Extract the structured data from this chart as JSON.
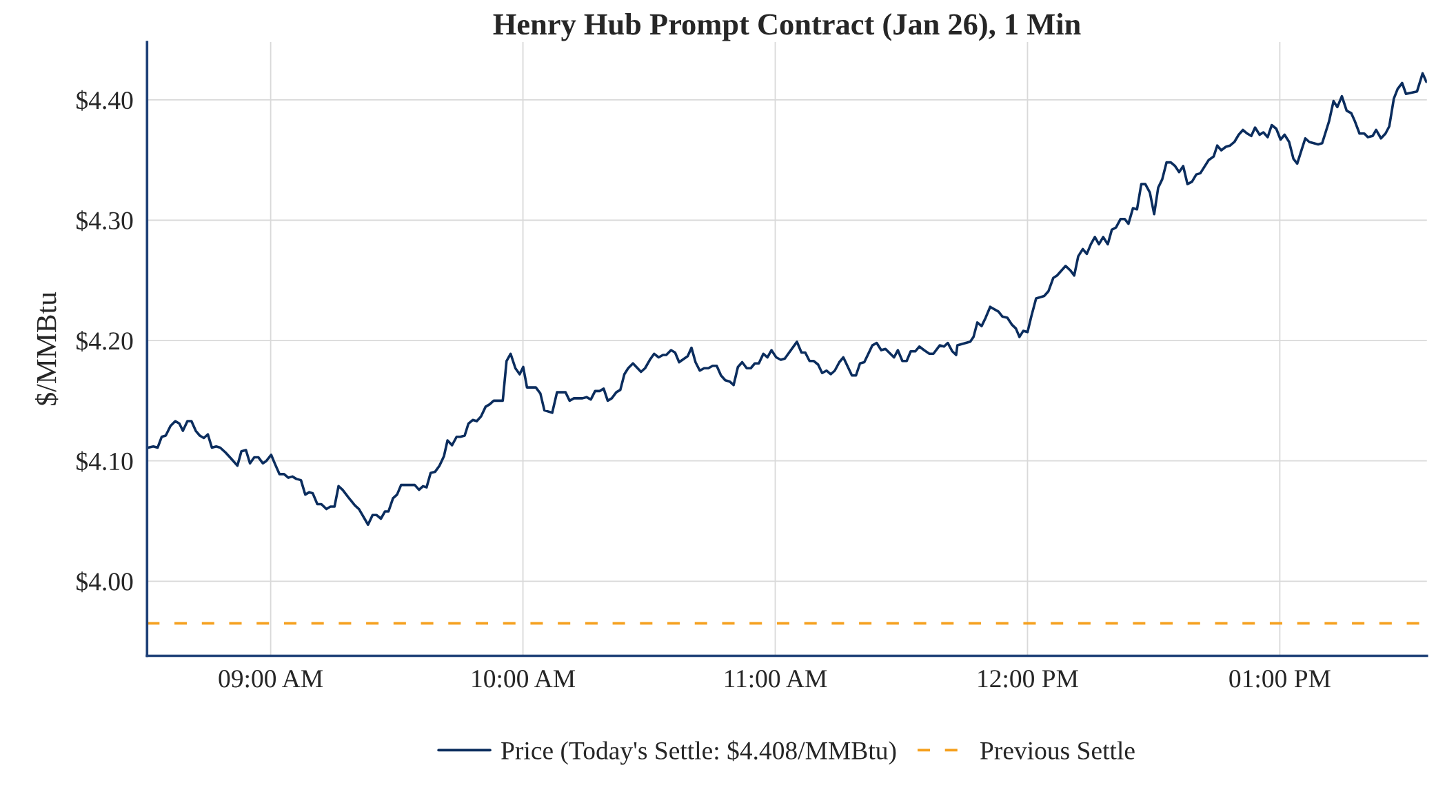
{
  "chart_data": {
    "type": "line",
    "title": "Henry Hub Prompt Contract (Jan 26), 1 Min",
    "ylabel": "$/MMBtu",
    "xlim": [
      8.51,
      13.583
    ],
    "ylim": [
      3.938,
      4.448
    ],
    "xticks": [
      {
        "value": 9,
        "label": "09:00 AM"
      },
      {
        "value": 10,
        "label": "10:00 AM"
      },
      {
        "value": 11,
        "label": "11:00 AM"
      },
      {
        "value": 12,
        "label": "12:00 PM"
      },
      {
        "value": 13,
        "label": "01:00 PM"
      }
    ],
    "yticks": [
      {
        "value": 4.0,
        "label": "$4.00"
      },
      {
        "value": 4.1,
        "label": "$4.10"
      },
      {
        "value": 4.2,
        "label": "$4.20"
      },
      {
        "value": 4.3,
        "label": "$4.30"
      },
      {
        "value": 4.4,
        "label": "$4.40"
      }
    ],
    "grid": true,
    "legend": "bottom",
    "series": [
      {
        "name": "Price (Today's Settle: $4.408/MMBtu)",
        "color": "#0b2d5e",
        "x": [
          8.514,
          8.535,
          8.552,
          8.568,
          8.584,
          8.603,
          8.622,
          8.638,
          8.652,
          8.67,
          8.686,
          8.703,
          8.719,
          8.735,
          8.751,
          8.767,
          8.784,
          8.8,
          8.821,
          8.843,
          8.868,
          8.884,
          8.902,
          8.918,
          8.935,
          8.951,
          8.969,
          8.983,
          9.002,
          9.018,
          9.035,
          9.053,
          9.07,
          9.086,
          9.102,
          9.12,
          9.137,
          9.153,
          9.167,
          9.185,
          9.201,
          9.221,
          9.237,
          9.253,
          9.269,
          9.285,
          9.307,
          9.334,
          9.35,
          9.386,
          9.404,
          9.42,
          9.437,
          9.453,
          9.467,
          9.485,
          9.501,
          9.517,
          9.571,
          9.588,
          9.604,
          9.618,
          9.634,
          9.652,
          9.669,
          9.687,
          9.701,
          9.719,
          9.737,
          9.752,
          9.769,
          9.784,
          9.801,
          9.817,
          9.834,
          9.852,
          9.868,
          9.884,
          9.92,
          9.935,
          9.951,
          9.97,
          9.987,
          10.001,
          10.016,
          10.051,
          10.069,
          10.085,
          10.116,
          10.135,
          10.169,
          10.185,
          10.202,
          10.236,
          10.252,
          10.269,
          10.286,
          10.304,
          10.32,
          10.336,
          10.352,
          10.37,
          10.386,
          10.402,
          10.417,
          10.436,
          10.468,
          10.484,
          10.503,
          10.52,
          10.538,
          10.555,
          10.568,
          10.587,
          10.603,
          10.619,
          10.653,
          10.668,
          10.684,
          10.701,
          10.718,
          10.735,
          10.752,
          10.768,
          10.785,
          10.802,
          10.819,
          10.835,
          10.852,
          10.869,
          10.887,
          10.903,
          10.919,
          10.935,
          10.953,
          10.969,
          10.985,
          11.004,
          11.022,
          11.038,
          11.086,
          11.104,
          11.119,
          11.136,
          11.153,
          11.17,
          11.186,
          11.203,
          11.22,
          11.236,
          11.254,
          11.27,
          11.304,
          11.32,
          11.336,
          11.353,
          11.385,
          11.402,
          11.42,
          11.437,
          11.471,
          11.486,
          11.504,
          11.521,
          11.537,
          11.555,
          11.571,
          11.59,
          11.611,
          11.627,
          11.652,
          11.669,
          11.684,
          11.702,
          11.717,
          11.722,
          11.773,
          11.786,
          11.801,
          11.818,
          11.834,
          11.852,
          11.885,
          11.9,
          11.92,
          11.939,
          11.954,
          11.968,
          11.983,
          12.0,
          12.015,
          12.034,
          12.066,
          12.083,
          12.102,
          12.117,
          12.151,
          12.171,
          12.185,
          12.201,
          12.219,
          12.235,
          12.251,
          12.267,
          12.283,
          12.3,
          12.318,
          12.334,
          12.351,
          12.369,
          12.385,
          12.4,
          12.418,
          12.434,
          12.451,
          12.467,
          12.485,
          12.502,
          12.518,
          12.534,
          12.551,
          12.568,
          12.585,
          12.601,
          12.617,
          12.634,
          12.652,
          12.669,
          12.685,
          12.718,
          12.738,
          12.752,
          12.768,
          12.786,
          12.803,
          12.82,
          12.837,
          12.854,
          12.871,
          12.887,
          12.902,
          12.92,
          12.935,
          12.952,
          12.968,
          12.986,
          13.003,
          13.019,
          13.037,
          13.054,
          13.069,
          13.101,
          13.117,
          13.152,
          13.168,
          13.195,
          13.213,
          13.228,
          13.246,
          13.265,
          13.283,
          13.298,
          13.316,
          13.335,
          13.349,
          13.368,
          13.382,
          13.401,
          13.419,
          13.434,
          13.452,
          13.467,
          13.485,
          13.5,
          13.522,
          13.544,
          13.566,
          13.581
        ],
        "values": [
          4.111,
          4.112,
          4.111,
          4.12,
          4.121,
          4.129,
          4.133,
          4.131,
          4.125,
          4.133,
          4.133,
          4.125,
          4.121,
          4.119,
          4.122,
          4.111,
          4.112,
          4.111,
          4.107,
          4.102,
          4.096,
          4.108,
          4.109,
          4.098,
          4.103,
          4.103,
          4.098,
          4.1,
          4.105,
          4.097,
          4.089,
          4.089,
          4.086,
          4.087,
          4.085,
          4.084,
          4.072,
          4.074,
          4.073,
          4.064,
          4.064,
          4.06,
          4.062,
          4.062,
          4.079,
          4.076,
          4.07,
          4.063,
          4.06,
          4.047,
          4.055,
          4.055,
          4.052,
          4.058,
          4.058,
          4.069,
          4.072,
          4.08,
          4.08,
          4.076,
          4.079,
          4.078,
          4.09,
          4.091,
          4.096,
          4.104,
          4.117,
          4.113,
          4.12,
          4.12,
          4.121,
          4.131,
          4.134,
          4.133,
          4.137,
          4.145,
          4.147,
          4.15,
          4.15,
          4.183,
          4.189,
          4.177,
          4.172,
          4.178,
          4.161,
          4.161,
          4.156,
          4.142,
          4.14,
          4.157,
          4.157,
          4.15,
          4.152,
          4.152,
          4.153,
          4.151,
          4.158,
          4.158,
          4.16,
          4.15,
          4.152,
          4.157,
          4.159,
          4.172,
          4.177,
          4.181,
          4.174,
          4.177,
          4.184,
          4.189,
          4.186,
          4.188,
          4.188,
          4.192,
          4.19,
          4.182,
          4.187,
          4.194,
          4.182,
          4.175,
          4.177,
          4.177,
          4.179,
          4.179,
          4.171,
          4.167,
          4.166,
          4.163,
          4.178,
          4.182,
          4.177,
          4.177,
          4.181,
          4.181,
          4.189,
          4.186,
          4.192,
          4.186,
          4.184,
          4.185,
          4.199,
          4.19,
          4.19,
          4.183,
          4.183,
          4.18,
          4.173,
          4.175,
          4.172,
          4.175,
          4.182,
          4.186,
          4.171,
          4.171,
          4.181,
          4.182,
          4.196,
          4.198,
          4.192,
          4.193,
          4.186,
          4.192,
          4.183,
          4.183,
          4.191,
          4.191,
          4.195,
          4.192,
          4.189,
          4.189,
          4.196,
          4.195,
          4.198,
          4.191,
          4.188,
          4.196,
          4.199,
          4.203,
          4.215,
          4.212,
          4.219,
          4.228,
          4.224,
          4.22,
          4.219,
          4.213,
          4.21,
          4.203,
          4.208,
          4.207,
          4.22,
          4.235,
          4.237,
          4.241,
          4.252,
          4.254,
          4.262,
          4.258,
          4.254,
          4.27,
          4.276,
          4.272,
          4.28,
          4.286,
          4.28,
          4.286,
          4.28,
          4.292,
          4.294,
          4.301,
          4.301,
          4.297,
          4.31,
          4.309,
          4.33,
          4.33,
          4.323,
          4.305,
          4.327,
          4.334,
          4.348,
          4.348,
          4.345,
          4.34,
          4.345,
          4.33,
          4.332,
          4.338,
          4.339,
          4.35,
          4.353,
          4.362,
          4.358,
          4.361,
          4.362,
          4.365,
          4.371,
          4.375,
          4.372,
          4.37,
          4.377,
          4.371,
          4.373,
          4.369,
          4.379,
          4.376,
          4.367,
          4.371,
          4.365,
          4.351,
          4.347,
          4.368,
          4.365,
          4.363,
          4.364,
          4.382,
          4.399,
          4.394,
          4.403,
          4.391,
          4.389,
          4.382,
          4.372,
          4.372,
          4.369,
          4.37,
          4.375,
          4.368,
          4.372,
          4.378,
          4.401,
          4.409,
          4.414,
          4.405,
          4.406,
          4.407,
          4.422,
          4.415
        ]
      }
    ],
    "ref_lines": [
      {
        "axis": "y",
        "value": 3.965,
        "label": "Previous Settle",
        "color": "#f5a01e",
        "line_style": "dashed"
      }
    ]
  }
}
